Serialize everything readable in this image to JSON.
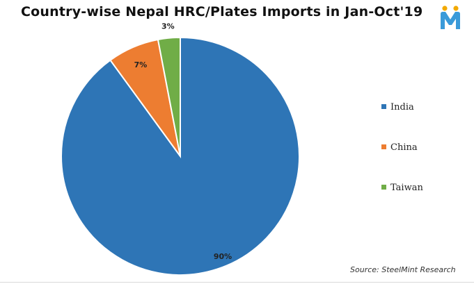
{
  "chart_data": {
    "type": "pie",
    "title": "Country-wise Nepal HRC/Plates Imports in Jan-Oct'19",
    "categories": [
      "India",
      "China",
      "Taiwan"
    ],
    "values": [
      90,
      7,
      3
    ],
    "data_labels": [
      "90%",
      "7%",
      "3%"
    ],
    "colors": [
      "#2e75b6",
      "#ed7d31",
      "#70ad47"
    ],
    "legend_position": "right",
    "source": "Source: SteelMint Research"
  },
  "logo": {
    "icon": "steelmint-m-logo",
    "colors": [
      "#f2a900",
      "#3a9ad9"
    ]
  }
}
